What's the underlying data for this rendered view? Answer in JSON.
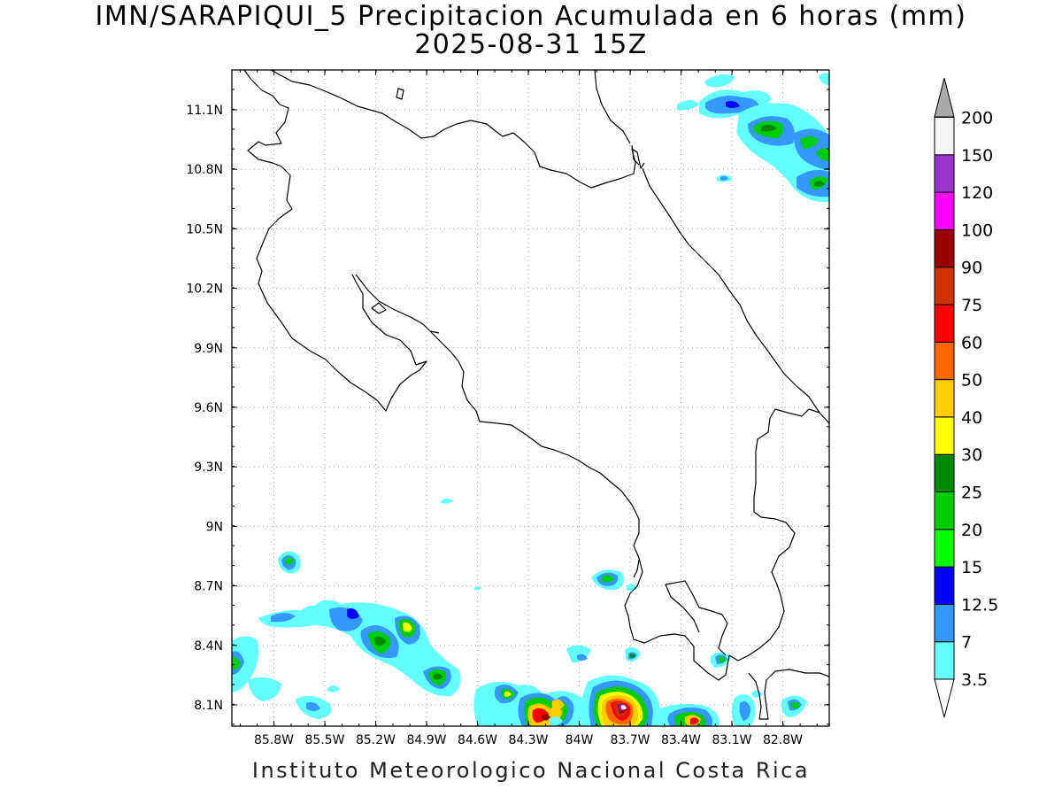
{
  "title": {
    "line1": "IMN/SARAPIQUI_5 Precipitacion Acumulada en 6 horas (mm)",
    "line2": "2025-08-31 15Z"
  },
  "credit": "Instituto Meteorologico Nacional Costa Rica",
  "axes": {
    "lon_labels": [
      "85.8W",
      "85.5W",
      "85.2W",
      "84.9W",
      "84.6W",
      "84.3W",
      "84W",
      "83.7W",
      "83.4W",
      "83.1W",
      "82.8W"
    ],
    "lat_labels": [
      "11.1N",
      "10.8N",
      "10.5N",
      "10.2N",
      "9.9N",
      "9.6N",
      "9.3N",
      "9N",
      "8.7N",
      "8.4N",
      "8.1N"
    ],
    "grid": "dotted"
  },
  "colorbar": {
    "labels": [
      "3.5",
      "7",
      "12.5",
      "15",
      "20",
      "25",
      "30",
      "40",
      "50",
      "60",
      "75",
      "90",
      "100",
      "120",
      "150",
      "200"
    ],
    "colors": [
      "#66ffff",
      "#3399ff",
      "#0000ff",
      "#00ff00",
      "#00cc00",
      "#008800",
      "#ffff00",
      "#ffcc00",
      "#ff6600",
      "#ff0000",
      "#cc3300",
      "#990000",
      "#ff00ff",
      "#9933cc",
      "#f5f5f5",
      "#aaaaaa"
    ]
  }
}
